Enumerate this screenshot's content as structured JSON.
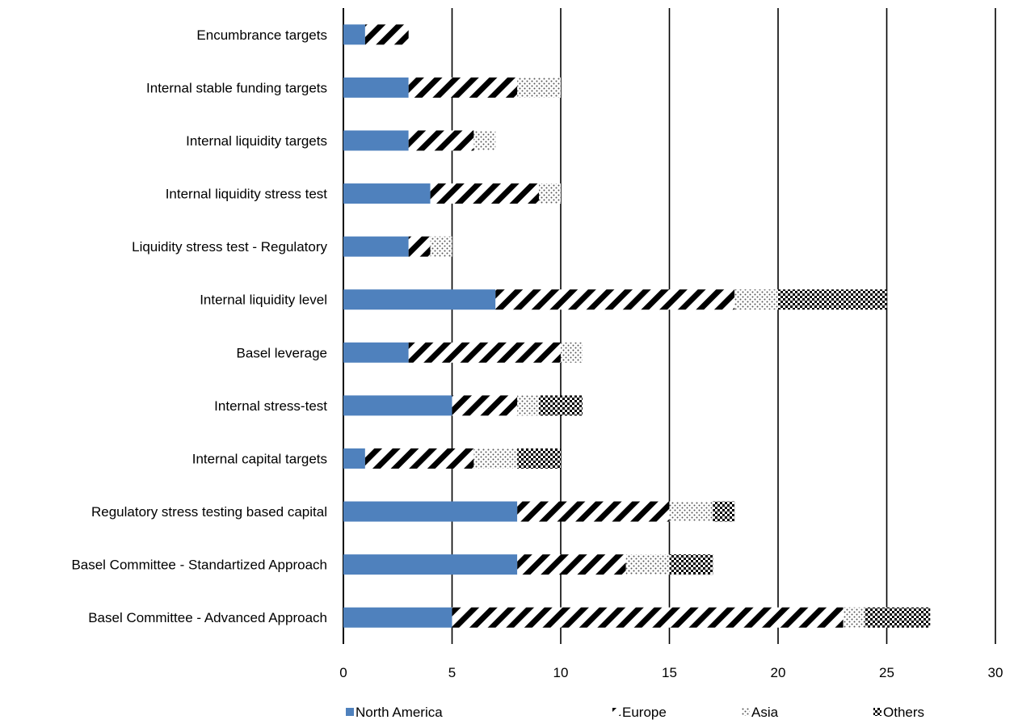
{
  "chart_data": {
    "type": "bar",
    "orientation": "horizontal",
    "stacked": true,
    "title": "",
    "xlabel": "",
    "ylabel": "",
    "xlim": [
      0,
      30
    ],
    "x_ticks": [
      "0",
      "5",
      "10",
      "15",
      "20",
      "25",
      "30"
    ],
    "grid": "vertical",
    "legend_position": "bottom",
    "categories": [
      "Encumbrance targets",
      "Internal stable funding targets",
      "Internal liquidity targets",
      "Internal liquidity stress test",
      "Liquidity stress test - Regulatory",
      "Internal liquidity level",
      "Basel leverage",
      "Internal stress-test",
      "Internal capital targets",
      "Regulatory stress testing based capital",
      "Basel Committee - Standartized Approach",
      "Basel Committee - Advanced Approach"
    ],
    "series": [
      {
        "name": "North America",
        "fill": "solid",
        "color": "#4f81bd",
        "values": [
          1,
          3,
          3,
          4,
          3,
          7,
          3,
          5,
          1,
          8,
          8,
          5
        ]
      },
      {
        "name": "Europe",
        "fill": "diagonal-stripes",
        "color": "#000000",
        "values": [
          2,
          5,
          3,
          5,
          1,
          11,
          7,
          3,
          5,
          7,
          5,
          18
        ]
      },
      {
        "name": "Asia",
        "fill": "dots",
        "color": "#000000",
        "values": [
          0,
          2,
          1,
          1,
          1,
          2,
          1,
          1,
          2,
          2,
          2,
          1
        ]
      },
      {
        "name": "Others",
        "fill": "checker",
        "color": "#000000",
        "values": [
          0,
          0,
          0,
          0,
          0,
          5,
          0,
          2,
          2,
          1,
          2,
          3
        ]
      }
    ]
  }
}
